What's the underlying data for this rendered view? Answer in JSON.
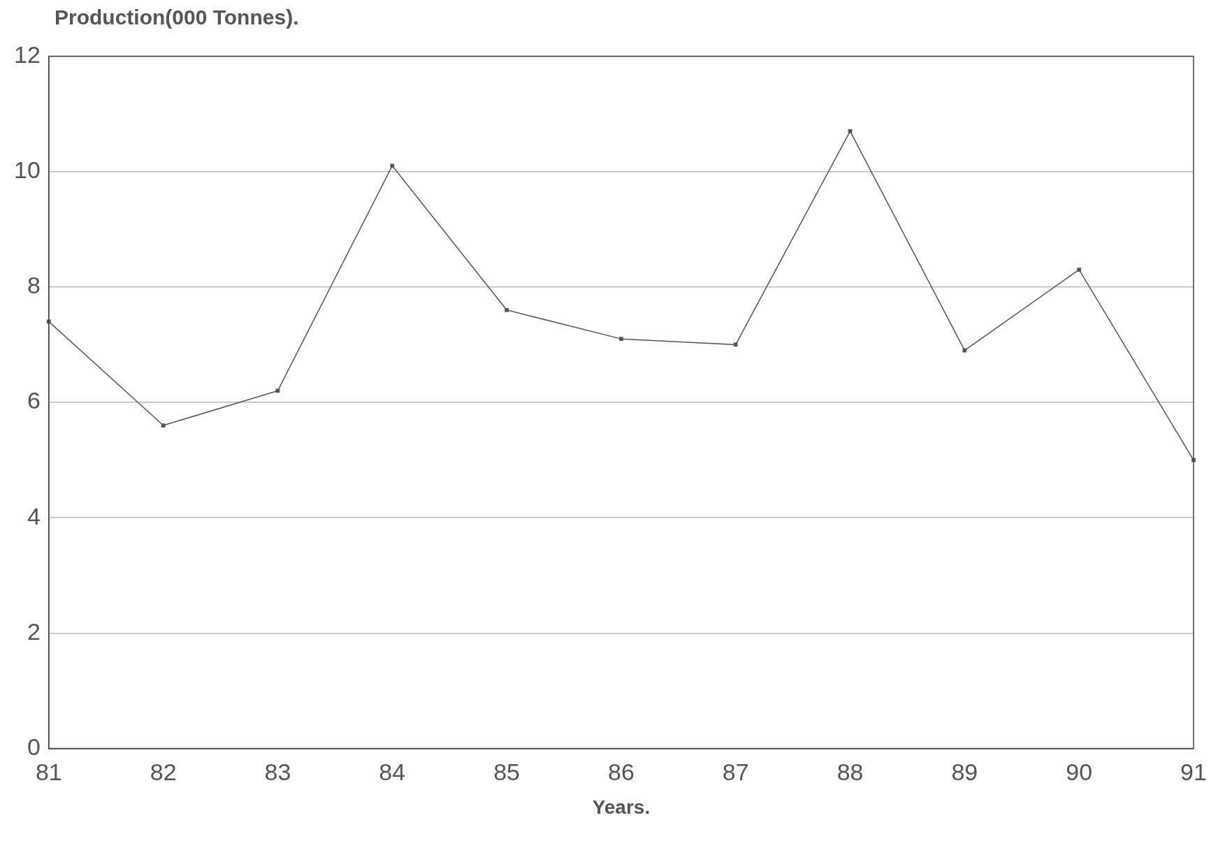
{
  "chart_data": {
    "type": "line",
    "ylabel": "Production(000 Tonnes).",
    "xlabel": "Years.",
    "categories": [
      "81",
      "82",
      "83",
      "84",
      "85",
      "86",
      "87",
      "88",
      "89",
      "90",
      "91"
    ],
    "series": [
      {
        "color": "#555555",
        "values": [
          7.4,
          5.6,
          6.2,
          10.1,
          7.6,
          7.1,
          7.0,
          10.7,
          6.9,
          8.3,
          5.0
        ]
      }
    ],
    "ylim": [
      0,
      12
    ],
    "yticks": [
      0,
      2,
      4,
      6,
      8,
      10,
      12
    ],
    "grid": "y",
    "marker": "square",
    "line_style": "solid",
    "legend": false
  }
}
